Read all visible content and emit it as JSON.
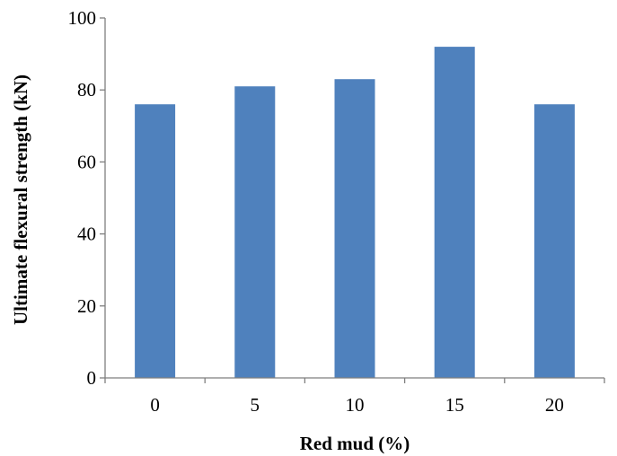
{
  "chart_data": {
    "type": "bar",
    "categories": [
      "0",
      "5",
      "10",
      "15",
      "20"
    ],
    "values": [
      76,
      81,
      83,
      92,
      76
    ],
    "xlabel": "Red mud (%)",
    "ylabel": "Ultimate flexural strength (kN)",
    "ylim": [
      0,
      100
    ],
    "yticks": [
      "0",
      "20",
      "40",
      "60",
      "80",
      "100"
    ],
    "grid": false,
    "legend": "none",
    "bar_color": "#4f81bd",
    "axis_color": "#7f7f7f"
  }
}
